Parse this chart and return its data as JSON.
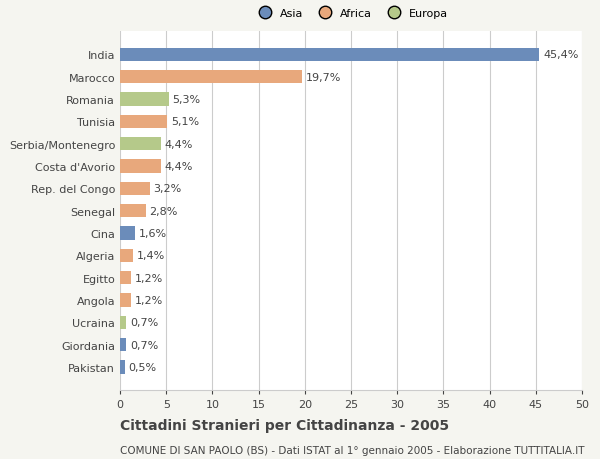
{
  "categories": [
    "India",
    "Marocco",
    "Romania",
    "Tunisia",
    "Serbia/Montenegro",
    "Costa d'Avorio",
    "Rep. del Congo",
    "Senegal",
    "Cina",
    "Algeria",
    "Egitto",
    "Angola",
    "Ucraina",
    "Giordania",
    "Pakistan"
  ],
  "values": [
    45.4,
    19.7,
    5.3,
    5.1,
    4.4,
    4.4,
    3.2,
    2.8,
    1.6,
    1.4,
    1.2,
    1.2,
    0.7,
    0.7,
    0.5
  ],
  "labels": [
    "45,4%",
    "19,7%",
    "5,3%",
    "5,1%",
    "4,4%",
    "4,4%",
    "3,2%",
    "2,8%",
    "1,6%",
    "1,4%",
    "1,2%",
    "1,2%",
    "0,7%",
    "0,7%",
    "0,5%"
  ],
  "colors": [
    "#6b8cba",
    "#e8a87c",
    "#b5c98a",
    "#e8a87c",
    "#b5c98a",
    "#e8a87c",
    "#e8a87c",
    "#e8a87c",
    "#6b8cba",
    "#e8a87c",
    "#e8a87c",
    "#e8a87c",
    "#b5c98a",
    "#6b8cba",
    "#6b8cba"
  ],
  "legend_labels": [
    "Asia",
    "Africa",
    "Europa"
  ],
  "legend_colors": [
    "#6b8cba",
    "#e8a87c",
    "#b5c98a"
  ],
  "title": "Cittadini Stranieri per Cittadinanza - 2005",
  "subtitle": "COMUNE DI SAN PAOLO (BS) - Dati ISTAT al 1° gennaio 2005 - Elaborazione TUTTITALIA.IT",
  "xlim": [
    0,
    50
  ],
  "xticks": [
    0,
    5,
    10,
    15,
    20,
    25,
    30,
    35,
    40,
    45,
    50
  ],
  "background_color": "#f5f5f0",
  "bar_background": "#ffffff",
  "grid_color": "#cccccc",
  "text_color": "#444444",
  "label_fontsize": 8,
  "tick_fontsize": 8,
  "title_fontsize": 10,
  "subtitle_fontsize": 7.5
}
